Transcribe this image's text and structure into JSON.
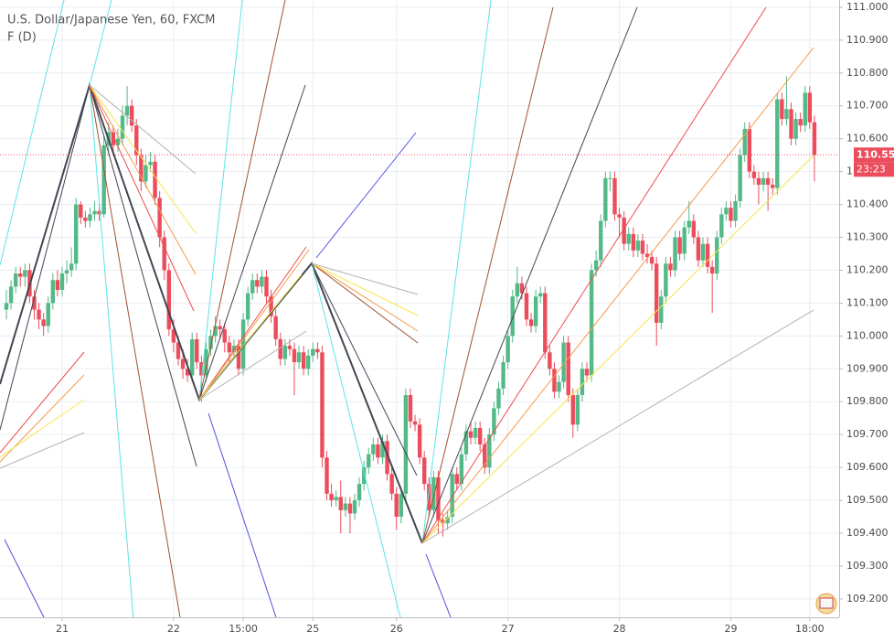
{
  "chart_data": {
    "type": "candlestick",
    "title": "U.S. Dollar/Japanese Yen, 60, FXCM",
    "subtitle": "F (D)",
    "up_color": "#53b987",
    "down_color": "#eb4d5c",
    "grid": true,
    "xlim": [
      -1.38,
      179.33
    ],
    "ylim": [
      109.144,
      111.022
    ],
    "xticks": [
      {
        "value": 12,
        "label": "21"
      },
      {
        "value": 36,
        "label": "22"
      },
      {
        "value": 51,
        "label": "15:00"
      },
      {
        "value": 66,
        "label": "25"
      },
      {
        "value": 84,
        "label": "26"
      },
      {
        "value": 108,
        "label": "27"
      },
      {
        "value": 132,
        "label": "28"
      },
      {
        "value": 156,
        "label": "29"
      },
      {
        "value": 173,
        "label": "18:00"
      }
    ],
    "yticks": [
      {
        "value": 109.2,
        "label": "109.200"
      },
      {
        "value": 109.3,
        "label": "109.300"
      },
      {
        "value": 109.4,
        "label": "109.400"
      },
      {
        "value": 109.5,
        "label": "109.500"
      },
      {
        "value": 109.6,
        "label": "109.600"
      },
      {
        "value": 109.7,
        "label": "109.700"
      },
      {
        "value": 109.8,
        "label": "109.800"
      },
      {
        "value": 109.9,
        "label": "109.900"
      },
      {
        "value": 110.0,
        "label": "110.000"
      },
      {
        "value": 110.1,
        "label": "110.100"
      },
      {
        "value": 110.2,
        "label": "110.200"
      },
      {
        "value": 110.3,
        "label": "110.300"
      },
      {
        "value": 110.4,
        "label": "110.400"
      },
      {
        "value": 110.5,
        "label": "110.500"
      },
      {
        "value": 110.6,
        "label": "110.600"
      },
      {
        "value": 110.7,
        "label": "110.700"
      },
      {
        "value": 110.8,
        "label": "110.800"
      },
      {
        "value": 110.9,
        "label": "110.900"
      },
      {
        "value": 111.0,
        "label": "111.000"
      }
    ],
    "last_price": 110.551,
    "countdown": "23:23",
    "ohlc": [
      [
        110.08,
        110.14,
        110.05,
        110.1
      ],
      [
        110.1,
        110.17,
        110.08,
        110.15
      ],
      [
        110.15,
        110.21,
        110.13,
        110.19
      ],
      [
        110.19,
        110.21,
        110.15,
        110.18
      ],
      [
        110.18,
        110.22,
        110.15,
        110.2
      ],
      [
        110.2,
        110.22,
        110.1,
        110.12
      ],
      [
        110.12,
        110.14,
        110.05,
        110.08
      ],
      [
        110.08,
        110.1,
        110.02,
        110.05
      ],
      [
        110.05,
        110.07,
        110.0,
        110.03
      ],
      [
        110.03,
        110.12,
        110.01,
        110.1
      ],
      [
        110.1,
        110.19,
        110.08,
        110.17
      ],
      [
        110.17,
        110.2,
        110.12,
        110.14
      ],
      [
        110.14,
        110.21,
        110.12,
        110.19
      ],
      [
        110.19,
        110.23,
        110.16,
        110.2
      ],
      [
        110.2,
        110.27,
        110.18,
        110.22
      ],
      [
        110.22,
        110.42,
        110.2,
        110.4
      ],
      [
        110.4,
        110.41,
        110.34,
        110.36
      ],
      [
        110.36,
        110.38,
        110.33,
        110.35
      ],
      [
        110.35,
        110.39,
        110.33,
        110.37
      ],
      [
        110.37,
        110.41,
        110.35,
        110.38
      ],
      [
        110.38,
        110.4,
        110.35,
        110.37
      ],
      [
        110.37,
        110.61,
        110.36,
        110.58
      ],
      [
        110.58,
        110.65,
        110.55,
        110.62
      ],
      [
        110.62,
        110.64,
        110.55,
        110.58
      ],
      [
        110.58,
        110.63,
        110.56,
        110.6
      ],
      [
        110.6,
        110.7,
        110.58,
        110.67
      ],
      [
        110.67,
        110.76,
        110.64,
        110.7
      ],
      [
        110.7,
        110.72,
        110.62,
        110.64
      ],
      [
        110.64,
        110.66,
        110.52,
        110.55
      ],
      [
        110.55,
        110.57,
        110.44,
        110.47
      ],
      [
        110.47,
        110.55,
        110.45,
        110.52
      ],
      [
        110.52,
        110.56,
        110.5,
        110.53
      ],
      [
        110.53,
        110.55,
        110.4,
        110.42
      ],
      [
        110.42,
        110.44,
        110.27,
        110.3
      ],
      [
        110.3,
        110.32,
        110.17,
        110.2
      ],
      [
        110.2,
        110.22,
        110.0,
        110.02
      ],
      [
        110.02,
        110.05,
        109.95,
        109.98
      ],
      [
        109.98,
        110.0,
        109.91,
        109.93
      ],
      [
        109.93,
        109.96,
        109.87,
        109.9
      ],
      [
        109.9,
        109.93,
        109.86,
        109.88
      ],
      [
        109.88,
        110.01,
        109.86,
        109.99
      ],
      [
        109.99,
        110.01,
        109.9,
        109.92
      ],
      [
        109.92,
        109.94,
        109.8,
        109.88
      ],
      [
        109.88,
        109.98,
        109.86,
        109.96
      ],
      [
        109.96,
        110.02,
        109.94,
        110.0
      ],
      [
        110.0,
        110.06,
        109.98,
        110.03
      ],
      [
        110.03,
        110.05,
        109.99,
        110.02
      ],
      [
        110.02,
        110.04,
        109.95,
        109.98
      ],
      [
        109.98,
        110.0,
        109.92,
        109.95
      ],
      [
        109.95,
        109.99,
        109.93,
        109.97
      ],
      [
        109.97,
        109.99,
        109.88,
        109.9
      ],
      [
        109.9,
        110.07,
        109.88,
        110.05
      ],
      [
        110.05,
        110.15,
        110.03,
        110.13
      ],
      [
        110.13,
        110.19,
        110.11,
        110.17
      ],
      [
        110.17,
        110.19,
        110.13,
        110.15
      ],
      [
        110.15,
        110.2,
        110.13,
        110.18
      ],
      [
        110.18,
        110.2,
        110.1,
        110.12
      ],
      [
        110.12,
        110.14,
        110.04,
        110.06
      ],
      [
        110.06,
        110.08,
        109.97,
        109.99
      ],
      [
        109.99,
        110.01,
        109.91,
        109.93
      ],
      [
        109.93,
        109.99,
        109.91,
        109.97
      ],
      [
        109.97,
        109.99,
        109.94,
        109.96
      ],
      [
        109.96,
        109.98,
        109.82,
        109.92
      ],
      [
        109.92,
        109.97,
        109.9,
        109.95
      ],
      [
        109.95,
        109.97,
        109.88,
        109.9
      ],
      [
        109.9,
        109.96,
        109.88,
        109.94
      ],
      [
        109.94,
        109.98,
        109.92,
        109.96
      ],
      [
        109.96,
        109.98,
        109.93,
        109.95
      ],
      [
        109.95,
        109.97,
        109.6,
        109.63
      ],
      [
        109.63,
        109.65,
        109.5,
        109.52
      ],
      [
        109.52,
        109.55,
        109.48,
        109.5
      ],
      [
        109.5,
        109.53,
        109.48,
        109.51
      ],
      [
        109.51,
        109.56,
        109.4,
        109.47
      ],
      [
        109.47,
        109.51,
        109.45,
        109.49
      ],
      [
        109.49,
        109.51,
        109.4,
        109.46
      ],
      [
        109.46,
        109.52,
        109.44,
        109.5
      ],
      [
        109.5,
        109.57,
        109.48,
        109.55
      ],
      [
        109.55,
        109.62,
        109.53,
        109.6
      ],
      [
        109.6,
        109.66,
        109.58,
        109.64
      ],
      [
        109.64,
        109.69,
        109.62,
        109.67
      ],
      [
        109.67,
        109.69,
        109.61,
        109.63
      ],
      [
        109.63,
        109.7,
        109.61,
        109.68
      ],
      [
        109.68,
        109.7,
        109.56,
        109.58
      ],
      [
        109.58,
        109.6,
        109.5,
        109.52
      ],
      [
        109.52,
        109.54,
        109.41,
        109.45
      ],
      [
        109.45,
        109.54,
        109.43,
        109.52
      ],
      [
        109.52,
        109.84,
        109.5,
        109.82
      ],
      [
        109.82,
        109.84,
        109.72,
        109.74
      ],
      [
        109.74,
        109.76,
        109.71,
        109.73
      ],
      [
        109.73,
        109.75,
        109.61,
        109.63
      ],
      [
        109.63,
        109.65,
        109.53,
        109.55
      ],
      [
        109.55,
        109.57,
        109.45,
        109.47
      ],
      [
        109.47,
        109.59,
        109.45,
        109.57
      ],
      [
        109.57,
        109.59,
        109.4,
        109.44
      ],
      [
        109.44,
        109.46,
        109.39,
        109.43
      ],
      [
        109.43,
        109.47,
        109.41,
        109.45
      ],
      [
        109.45,
        109.6,
        109.43,
        109.58
      ],
      [
        109.58,
        109.6,
        109.53,
        109.55
      ],
      [
        109.55,
        109.66,
        109.53,
        109.64
      ],
      [
        109.64,
        109.73,
        109.62,
        109.71
      ],
      [
        109.71,
        109.74,
        109.67,
        109.69
      ],
      [
        109.69,
        109.74,
        109.67,
        109.72
      ],
      [
        109.72,
        109.74,
        109.65,
        109.67
      ],
      [
        109.67,
        109.69,
        109.58,
        109.6
      ],
      [
        109.6,
        109.72,
        109.58,
        109.7
      ],
      [
        109.7,
        109.8,
        109.68,
        109.78
      ],
      [
        109.78,
        109.86,
        109.76,
        109.84
      ],
      [
        109.84,
        109.94,
        109.82,
        109.92
      ],
      [
        109.92,
        110.02,
        109.9,
        110.0
      ],
      [
        110.0,
        110.14,
        109.98,
        110.12
      ],
      [
        110.12,
        110.21,
        110.1,
        110.16
      ],
      [
        110.16,
        110.18,
        110.11,
        110.13
      ],
      [
        110.13,
        110.15,
        110.03,
        110.05
      ],
      [
        110.05,
        110.07,
        110.01,
        110.03
      ],
      [
        110.03,
        110.14,
        110.01,
        110.12
      ],
      [
        110.12,
        110.15,
        110.1,
        110.13
      ],
      [
        110.13,
        110.15,
        109.93,
        109.95
      ],
      [
        109.95,
        109.97,
        109.88,
        109.9
      ],
      [
        109.9,
        109.92,
        109.81,
        109.83
      ],
      [
        109.83,
        109.88,
        109.81,
        109.86
      ],
      [
        109.86,
        110.0,
        109.84,
        109.98
      ],
      [
        109.98,
        110.0,
        109.8,
        109.82
      ],
      [
        109.82,
        109.84,
        109.69,
        109.73
      ],
      [
        109.73,
        109.84,
        109.71,
        109.82
      ],
      [
        109.82,
        109.92,
        109.8,
        109.9
      ],
      [
        109.9,
        109.92,
        109.86,
        109.88
      ],
      [
        109.88,
        110.22,
        109.86,
        110.2
      ],
      [
        110.2,
        110.26,
        110.18,
        110.23
      ],
      [
        110.23,
        110.37,
        110.21,
        110.35
      ],
      [
        110.35,
        110.5,
        110.33,
        110.48
      ],
      [
        110.48,
        110.5,
        110.44,
        110.48
      ],
      [
        110.48,
        110.5,
        110.35,
        110.37
      ],
      [
        110.37,
        110.39,
        110.3,
        110.36
      ],
      [
        110.36,
        110.38,
        110.26,
        110.28
      ],
      [
        110.28,
        110.33,
        110.26,
        110.31
      ],
      [
        110.31,
        110.33,
        110.24,
        110.26
      ],
      [
        110.26,
        110.31,
        110.24,
        110.29
      ],
      [
        110.29,
        110.31,
        110.23,
        110.25
      ],
      [
        110.25,
        110.28,
        110.22,
        110.24
      ],
      [
        110.24,
        110.26,
        110.2,
        110.22
      ],
      [
        110.22,
        110.24,
        109.97,
        110.04
      ],
      [
        110.04,
        110.14,
        110.02,
        110.12
      ],
      [
        110.12,
        110.24,
        110.1,
        110.22
      ],
      [
        110.22,
        110.24,
        110.18,
        110.2
      ],
      [
        110.2,
        110.32,
        110.18,
        110.3
      ],
      [
        110.3,
        110.32,
        110.23,
        110.25
      ],
      [
        110.25,
        110.35,
        110.23,
        110.33
      ],
      [
        110.33,
        110.41,
        110.31,
        110.35
      ],
      [
        110.35,
        110.37,
        110.28,
        110.3
      ],
      [
        110.3,
        110.32,
        110.21,
        110.23
      ],
      [
        110.23,
        110.3,
        110.21,
        110.28
      ],
      [
        110.28,
        110.3,
        110.19,
        110.21
      ],
      [
        110.21,
        110.23,
        110.07,
        110.19
      ],
      [
        110.19,
        110.32,
        110.17,
        110.3
      ],
      [
        110.3,
        110.39,
        110.28,
        110.37
      ],
      [
        110.37,
        110.41,
        110.35,
        110.39
      ],
      [
        110.39,
        110.41,
        110.33,
        110.35
      ],
      [
        110.35,
        110.43,
        110.33,
        110.41
      ],
      [
        110.41,
        110.57,
        110.39,
        110.55
      ],
      [
        110.55,
        110.65,
        110.53,
        110.63
      ],
      [
        110.63,
        110.65,
        110.48,
        110.5
      ],
      [
        110.5,
        110.52,
        110.46,
        110.48
      ],
      [
        110.48,
        110.5,
        110.4,
        110.46
      ],
      [
        110.46,
        110.5,
        110.44,
        110.48
      ],
      [
        110.48,
        110.5,
        110.38,
        110.46
      ],
      [
        110.46,
        110.48,
        110.43,
        110.45
      ],
      [
        110.45,
        110.74,
        110.43,
        110.72
      ],
      [
        110.72,
        110.74,
        110.64,
        110.66
      ],
      [
        110.66,
        110.79,
        110.64,
        110.69
      ],
      [
        110.69,
        110.71,
        110.58,
        110.6
      ],
      [
        110.6,
        110.68,
        110.58,
        110.66
      ],
      [
        110.66,
        110.68,
        110.62,
        110.64
      ],
      [
        110.64,
        110.76,
        110.62,
        110.74
      ],
      [
        110.74,
        110.76,
        110.63,
        110.65
      ],
      [
        110.65,
        110.67,
        110.47,
        110.551
      ]
    ]
  }
}
